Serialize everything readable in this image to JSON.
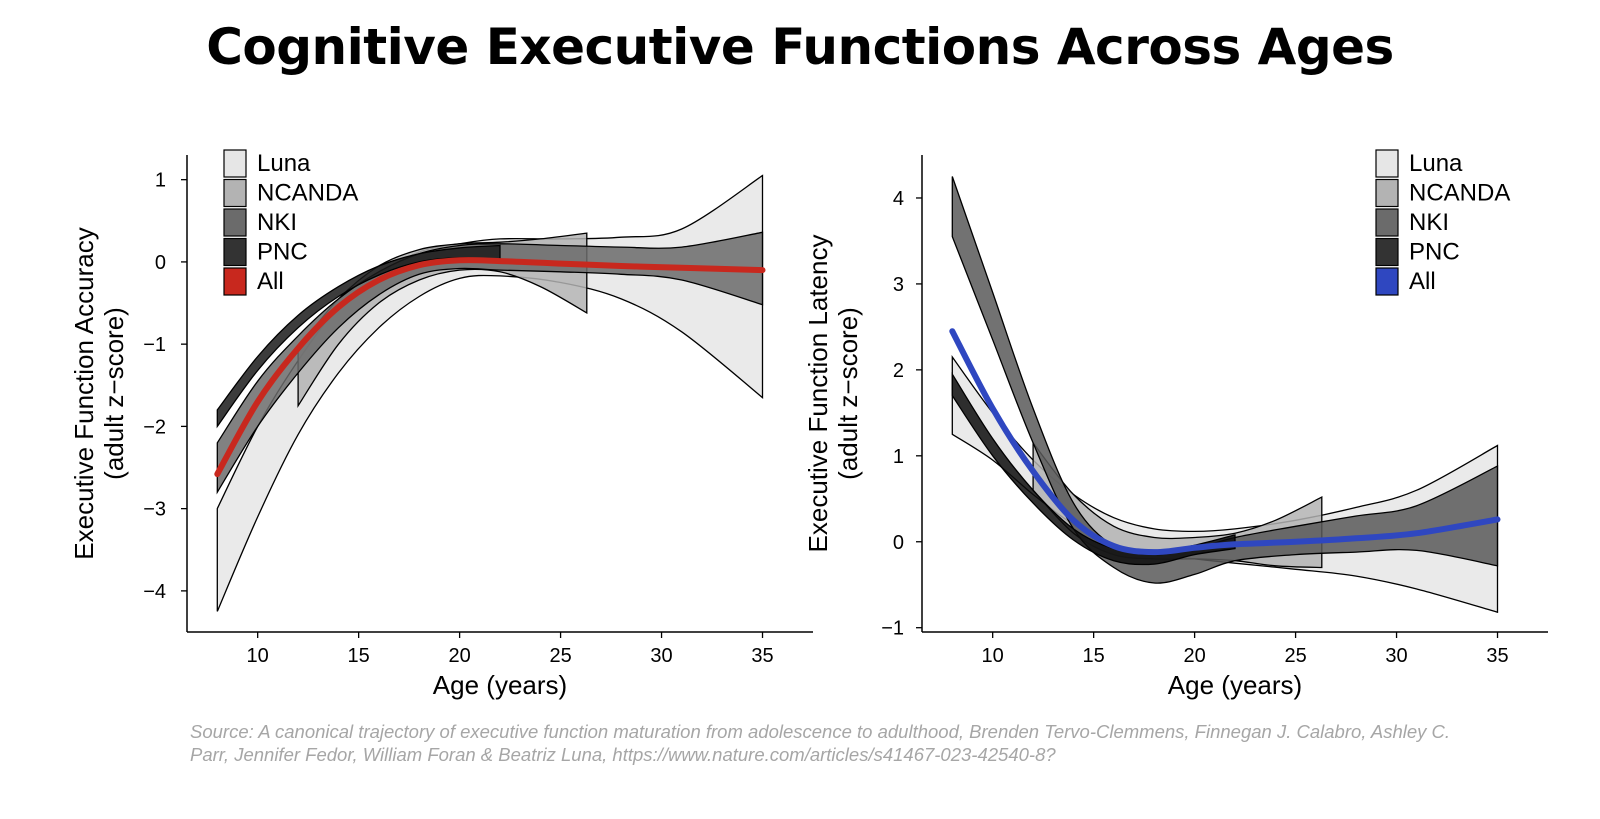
{
  "title": "Cognitive Executive Functions Across Ages",
  "source": "Source: A canonical trajectory of executive function maturation from adolescence to adulthood, Brenden Tervo-Clemmens, Finnegan J. Calabro, Ashley C. Parr, Jennifer Fedor, William Foran & Beatriz Luna, https://www.nature.com/articles/s41467-023-42540-8?",
  "chart_data": [
    {
      "type": "line",
      "title": "",
      "xlabel": "Age (years)",
      "ylabel_line1": "Executive Function Accuracy",
      "ylabel_line2": "(adult z−score)",
      "xlim": [
        6.5,
        37.5
      ],
      "ylim": [
        -4.5,
        1.3
      ],
      "xticks": [
        10,
        15,
        20,
        25,
        30,
        35
      ],
      "yticks": [
        1,
        0,
        -1,
        -2,
        -3,
        -4
      ],
      "ytick_labels": [
        "1",
        "0",
        "−1",
        "−2",
        "−3",
        "−4"
      ],
      "legend_position": "top-left",
      "legend": [
        {
          "label": "Luna",
          "color": "#e6e6e6"
        },
        {
          "label": "NCANDA",
          "color": "#b3b3b3"
        },
        {
          "label": "NKI",
          "color": "#6b6b6b"
        },
        {
          "label": "PNC",
          "color": "#333333"
        },
        {
          "label": "All",
          "color": "#c8281e"
        }
      ],
      "bands": [
        {
          "name": "Luna",
          "color": "#e6e6e6",
          "x": [
            8,
            10,
            12,
            14,
            16,
            18,
            20,
            22,
            25,
            28,
            31,
            35
          ],
          "upper": [
            -3.0,
            -2.0,
            -1.2,
            -0.55,
            -0.15,
            0.12,
            0.22,
            0.28,
            0.28,
            0.3,
            0.4,
            1.05
          ],
          "lower": [
            -4.25,
            -3.1,
            -2.1,
            -1.35,
            -0.8,
            -0.42,
            -0.2,
            -0.17,
            -0.25,
            -0.45,
            -0.85,
            -1.65
          ]
        },
        {
          "name": "NCANDA",
          "color": "#b3b3b3",
          "x": [
            12,
            14,
            16,
            18,
            20,
            22,
            24,
            26.3
          ],
          "upper": [
            -1.05,
            -0.45,
            -0.05,
            0.15,
            0.22,
            0.24,
            0.28,
            0.35
          ],
          "lower": [
            -1.75,
            -1.0,
            -0.5,
            -0.22,
            -0.1,
            -0.12,
            -0.3,
            -0.62
          ]
        },
        {
          "name": "NKI",
          "color": "#6b6b6b",
          "x": [
            8,
            10,
            12,
            14,
            16,
            18,
            20,
            22,
            25,
            28,
            31,
            35
          ],
          "upper": [
            -2.2,
            -1.45,
            -0.9,
            -0.45,
            -0.12,
            0.1,
            0.2,
            0.22,
            0.2,
            0.18,
            0.18,
            0.36
          ],
          "lower": [
            -2.8,
            -2.0,
            -1.35,
            -0.8,
            -0.4,
            -0.15,
            -0.08,
            -0.1,
            -0.12,
            -0.15,
            -0.22,
            -0.52
          ]
        },
        {
          "name": "PNC",
          "color": "#1a1a1a",
          "x": [
            8,
            10,
            12,
            14,
            16,
            18,
            20,
            22
          ],
          "upper": [
            -1.8,
            -1.15,
            -0.65,
            -0.3,
            -0.05,
            0.1,
            0.17,
            0.2
          ],
          "lower": [
            -2.0,
            -1.32,
            -0.8,
            -0.42,
            -0.16,
            0.0,
            0.05,
            0.02
          ]
        }
      ],
      "series": [
        {
          "name": "All",
          "color": "#c8281e",
          "x": [
            8,
            10,
            12,
            14,
            16,
            18,
            20,
            22,
            25,
            28,
            31,
            35
          ],
          "values": [
            -2.58,
            -1.7,
            -1.05,
            -0.55,
            -0.22,
            -0.04,
            0.02,
            0.01,
            -0.02,
            -0.05,
            -0.07,
            -0.1
          ]
        }
      ]
    },
    {
      "type": "line",
      "title": "",
      "xlabel": "Age (years)",
      "ylabel_line1": "Executive Function Latency",
      "ylabel_line2": "(adult z−score)",
      "xlim": [
        6.5,
        37.5
      ],
      "ylim": [
        -1.05,
        4.5
      ],
      "xticks": [
        10,
        15,
        20,
        25,
        30,
        35
      ],
      "yticks": [
        4,
        3,
        2,
        1,
        0,
        -1
      ],
      "ytick_labels": [
        "4",
        "3",
        "2",
        "1",
        "0",
        "−1"
      ],
      "legend_position": "top-right",
      "legend": [
        {
          "label": "Luna",
          "color": "#e6e6e6"
        },
        {
          "label": "NCANDA",
          "color": "#b3b3b3"
        },
        {
          "label": "NKI",
          "color": "#6b6b6b"
        },
        {
          "label": "PNC",
          "color": "#333333"
        },
        {
          "label": "All",
          "color": "#2f47c0"
        }
      ],
      "bands": [
        {
          "name": "Luna",
          "color": "#e6e6e6",
          "x": [
            8,
            10,
            12,
            14,
            16,
            18,
            20,
            22,
            25,
            28,
            31,
            35
          ],
          "upper": [
            2.15,
            1.5,
            0.95,
            0.55,
            0.28,
            0.15,
            0.12,
            0.15,
            0.25,
            0.4,
            0.6,
            1.12
          ],
          "lower": [
            1.25,
            0.95,
            0.55,
            0.2,
            -0.05,
            -0.15,
            -0.2,
            -0.25,
            -0.32,
            -0.4,
            -0.55,
            -0.82
          ]
        },
        {
          "name": "NCANDA",
          "color": "#b3b3b3",
          "x": [
            12,
            14,
            16,
            18,
            20,
            22,
            24,
            26.3
          ],
          "upper": [
            1.15,
            0.55,
            0.18,
            0.05,
            0.05,
            0.1,
            0.25,
            0.52
          ],
          "lower": [
            0.6,
            0.1,
            -0.15,
            -0.2,
            -0.2,
            -0.22,
            -0.28,
            -0.3
          ]
        },
        {
          "name": "NKI",
          "color": "#595959",
          "x": [
            8,
            10,
            12,
            14,
            16,
            18,
            20,
            22,
            25,
            28,
            31,
            35
          ],
          "upper": [
            4.25,
            2.9,
            1.55,
            0.45,
            -0.05,
            -0.15,
            -0.08,
            0.05,
            0.18,
            0.3,
            0.42,
            0.88
          ],
          "lower": [
            3.55,
            2.35,
            1.15,
            0.15,
            -0.3,
            -0.48,
            -0.38,
            -0.22,
            -0.15,
            -0.12,
            -0.1,
            -0.28
          ]
        },
        {
          "name": "PNC",
          "color": "#0d0d0d",
          "x": [
            8,
            10,
            12,
            14,
            16,
            18,
            20,
            22
          ],
          "upper": [
            1.95,
            1.2,
            0.6,
            0.15,
            -0.08,
            -0.12,
            -0.04,
            0.08
          ],
          "lower": [
            1.7,
            1.0,
            0.45,
            0.02,
            -0.22,
            -0.26,
            -0.15,
            -0.08
          ]
        }
      ],
      "series": [
        {
          "name": "All",
          "color": "#2f47c0",
          "x": [
            8,
            10,
            12,
            14,
            16,
            18,
            20,
            22,
            25,
            28,
            31,
            35
          ],
          "values": [
            2.45,
            1.55,
            0.82,
            0.25,
            -0.05,
            -0.12,
            -0.07,
            -0.03,
            0.0,
            0.04,
            0.1,
            0.26
          ]
        }
      ]
    }
  ]
}
